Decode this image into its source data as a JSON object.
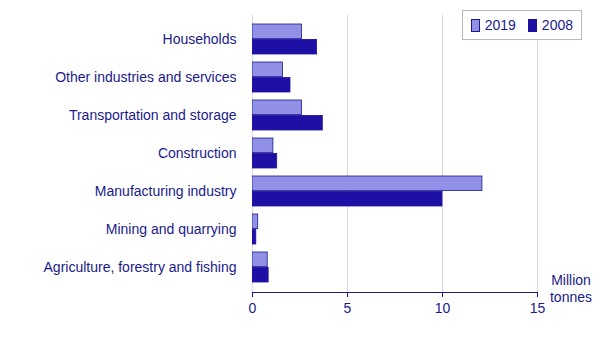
{
  "chart_data": {
    "type": "bar",
    "orientation": "horizontal",
    "categories": [
      "Households",
      "Other industries and services",
      "Transportation and storage",
      "Construction",
      "Manufacturing industry",
      "Mining and quarrying",
      "Agriculture, forestry and fishing"
    ],
    "series": [
      {
        "name": "2019",
        "color": "#9090e6",
        "values": [
          2.6,
          1.6,
          2.6,
          1.1,
          12.1,
          0.3,
          0.8
        ]
      },
      {
        "name": "2008",
        "color": "#1e0fa5",
        "values": [
          3.4,
          2.0,
          3.7,
          1.3,
          10.0,
          0.2,
          0.85
        ]
      }
    ],
    "xlim": [
      0,
      15
    ],
    "xticks": [
      0,
      5,
      10,
      15
    ],
    "xlabel": "Million tonnes",
    "grid": true,
    "legend": "top-right"
  }
}
